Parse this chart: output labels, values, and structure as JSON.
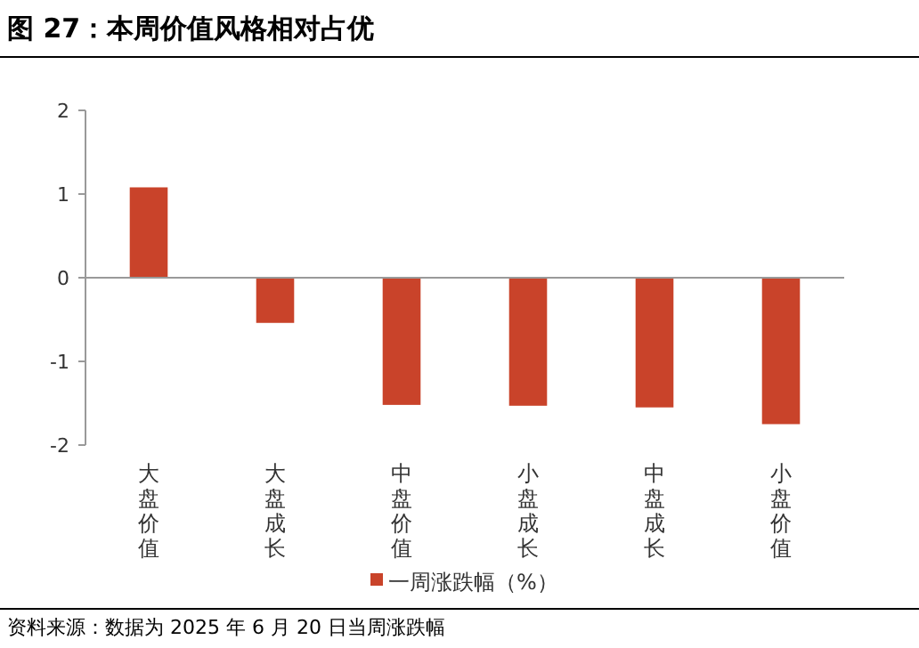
{
  "chart_data": {
    "type": "bar",
    "title": "图 27：本周价值风格相对占优",
    "categories": [
      "大盘价值",
      "大盘成长",
      "中盘价值",
      "小盘成长",
      "中盘成长",
      "小盘价值"
    ],
    "series": [
      {
        "name": "一周涨跌幅（%）",
        "color": "#c9432a",
        "values": [
          1.08,
          -0.54,
          -1.52,
          -1.53,
          -1.55,
          -1.75
        ]
      }
    ],
    "ylim": [
      -2,
      2
    ],
    "yticks": [
      -2,
      -1,
      0,
      1,
      2
    ],
    "legend": "bottom",
    "annotations": [
      "资料来源：数据为 2025 年 6 月 20 日当周涨跌幅"
    ]
  }
}
